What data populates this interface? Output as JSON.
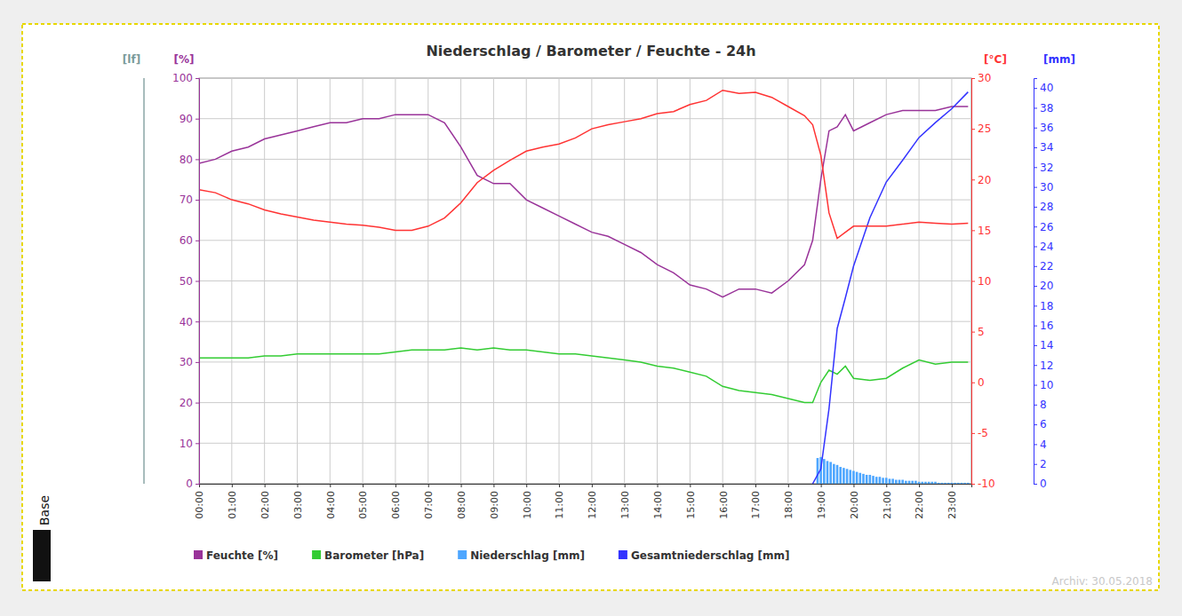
{
  "chart_data": {
    "type": "line",
    "title": "Niederschlag / Barometer / Feuchte - 24h",
    "ylabel": "[%]",
    "y2label": "[°C]",
    "y3label": "[mm]",
    "annotations": [
      "[lf]",
      "Base",
      "Archiv: 30.05.2018"
    ],
    "grid": true,
    "legend": "bottom",
    "x": [
      0,
      0.5,
      1,
      1.5,
      2,
      2.5,
      3,
      3.5,
      4,
      4.5,
      5,
      5.5,
      6,
      6.5,
      7,
      7.5,
      8,
      8.5,
      9,
      9.5,
      10,
      10.5,
      11,
      11.5,
      12,
      12.5,
      13,
      13.5,
      14,
      14.5,
      15,
      15.5,
      16,
      16.5,
      17,
      17.5,
      18,
      18.5,
      18.75,
      19,
      19.25,
      19.5,
      19.75,
      20,
      20.5,
      21,
      21.5,
      22,
      22.5,
      23,
      23.5
    ],
    "xlim": [
      0,
      23.6
    ],
    "xticks": [
      {
        "value": 0,
        "label": "00:00"
      },
      {
        "value": 1,
        "label": "01:00"
      },
      {
        "value": 2,
        "label": "02:00"
      },
      {
        "value": 3,
        "label": "03:00"
      },
      {
        "value": 4,
        "label": "04:00"
      },
      {
        "value": 5,
        "label": "05:00"
      },
      {
        "value": 6,
        "label": "06:00"
      },
      {
        "value": 7,
        "label": "07:00"
      },
      {
        "value": 8,
        "label": "08:00"
      },
      {
        "value": 9,
        "label": "09:00"
      },
      {
        "value": 10,
        "label": "10:00"
      },
      {
        "value": 11,
        "label": "11:00"
      },
      {
        "value": 12,
        "label": "12:00"
      },
      {
        "value": 13,
        "label": "13:00"
      },
      {
        "value": 14,
        "label": "14:00"
      },
      {
        "value": 15,
        "label": "15:00"
      },
      {
        "value": 16,
        "label": "16:00"
      },
      {
        "value": 17,
        "label": "17:00"
      },
      {
        "value": 18,
        "label": "18:00"
      },
      {
        "value": 19,
        "label": "19:00"
      },
      {
        "value": 20,
        "label": "20:00"
      },
      {
        "value": 21,
        "label": "21:00"
      },
      {
        "value": 22,
        "label": "22:00"
      },
      {
        "value": 23,
        "label": "23:00"
      }
    ],
    "ylim": [
      0,
      100
    ],
    "yticks": [
      0,
      10,
      20,
      30,
      40,
      50,
      60,
      70,
      80,
      90,
      100
    ],
    "y2lim": [
      -10,
      30
    ],
    "y2ticks": [
      -10,
      -5,
      0,
      5,
      10,
      15,
      20,
      25,
      30
    ],
    "y3lim": [
      0,
      41
    ],
    "y3ticks": [
      0,
      2,
      4,
      6,
      8,
      10,
      12,
      14,
      16,
      18,
      20,
      22,
      24,
      26,
      28,
      30,
      32,
      34,
      36,
      38,
      40
    ],
    "series": [
      {
        "name": "Feuchte [%]",
        "type": "line",
        "color": "#993399",
        "values": [
          79,
          80,
          82,
          83,
          85,
          86,
          87,
          88,
          89,
          89,
          90,
          90,
          91,
          91,
          91,
          89,
          83,
          76,
          74,
          74,
          70,
          68,
          66,
          64,
          62,
          61,
          59,
          57,
          54,
          52,
          49,
          48,
          46,
          48,
          48,
          47,
          50,
          54,
          60,
          75,
          87,
          88,
          91,
          87,
          89,
          91,
          92,
          92,
          92,
          93,
          93
        ]
      },
      {
        "name": "Barometer [hPa]",
        "type": "line",
        "color": "#33cc33",
        "values": [
          31,
          31,
          31,
          31,
          31.5,
          31.5,
          32,
          32,
          32,
          32,
          32,
          32,
          32.5,
          33,
          33,
          33,
          33.5,
          33,
          33.5,
          33,
          33,
          32.5,
          32,
          32,
          31.5,
          31,
          30.5,
          30,
          29,
          28.5,
          27.5,
          26.5,
          24,
          23,
          22.5,
          22,
          21,
          20,
          20,
          25,
          28,
          27,
          29,
          26,
          25.5,
          26,
          28.5,
          30.5,
          29.5,
          30,
          30
        ]
      },
      {
        "name": "Niederschlag [mm]",
        "type": "bar",
        "color": "#4da6ff",
        "axis": "y3",
        "x": [
          18.9,
          19,
          19.1,
          19.2,
          19.3,
          19.4,
          19.5,
          19.6,
          19.7,
          19.8,
          19.9,
          20,
          20.1,
          20.2,
          20.3,
          20.4,
          20.5,
          20.6,
          20.7,
          20.8,
          20.9,
          21,
          21.1,
          21.2,
          21.3,
          21.4,
          21.5,
          21.6,
          21.7,
          21.8,
          21.9,
          22,
          22.1,
          22.2,
          22.3,
          22.4,
          22.5,
          22.6,
          22.7,
          22.8,
          22.9,
          23,
          23.1,
          23.2,
          23.3,
          23.4,
          23.5
        ],
        "values": [
          2.6,
          2.7,
          2.5,
          2.3,
          2.2,
          2.0,
          1.9,
          1.7,
          1.6,
          1.5,
          1.4,
          1.3,
          1.2,
          1.1,
          1.0,
          0.9,
          0.9,
          0.8,
          0.7,
          0.7,
          0.6,
          0.6,
          0.5,
          0.5,
          0.4,
          0.4,
          0.4,
          0.3,
          0.3,
          0.3,
          0.3,
          0.2,
          0.2,
          0.2,
          0.2,
          0.2,
          0.2,
          0.1,
          0.1,
          0.1,
          0.1,
          0.1,
          0.1,
          0.1,
          0.1,
          0.1,
          0.1
        ]
      },
      {
        "name": "Gesamtniederschlag [mm]",
        "type": "line",
        "color": "#3333ff",
        "axis": "y3",
        "values": [
          null,
          null,
          null,
          null,
          null,
          null,
          null,
          null,
          null,
          null,
          null,
          null,
          null,
          null,
          null,
          null,
          null,
          null,
          null,
          null,
          null,
          null,
          null,
          null,
          null,
          null,
          null,
          null,
          null,
          null,
          null,
          null,
          null,
          null,
          null,
          null,
          null,
          null,
          0,
          1.5,
          7.6,
          15.7,
          18.8,
          22,
          26.9,
          30.5,
          32.7,
          35,
          36.5,
          37.9,
          39.6
        ]
      },
      {
        "type": "line",
        "color": "#ff3333",
        "axis": "y2",
        "values": [
          19,
          18.7,
          18.0,
          17.6,
          17.0,
          16.6,
          16.3,
          16.0,
          15.8,
          15.6,
          15.5,
          15.3,
          15.0,
          15.0,
          15.4,
          16.2,
          17.7,
          19.7,
          20.9,
          21.9,
          22.8,
          23.2,
          23.5,
          24.1,
          25.0,
          25.4,
          25.7,
          26.0,
          26.5,
          26.7,
          27.4,
          27.8,
          28.8,
          28.5,
          28.6,
          28.1,
          27.2,
          26.3,
          25.4,
          22.4,
          16.7,
          14.2,
          14.8,
          15.4,
          15.4,
          15.4,
          15.6,
          15.8,
          15.7,
          15.6,
          15.7
        ]
      }
    ]
  }
}
